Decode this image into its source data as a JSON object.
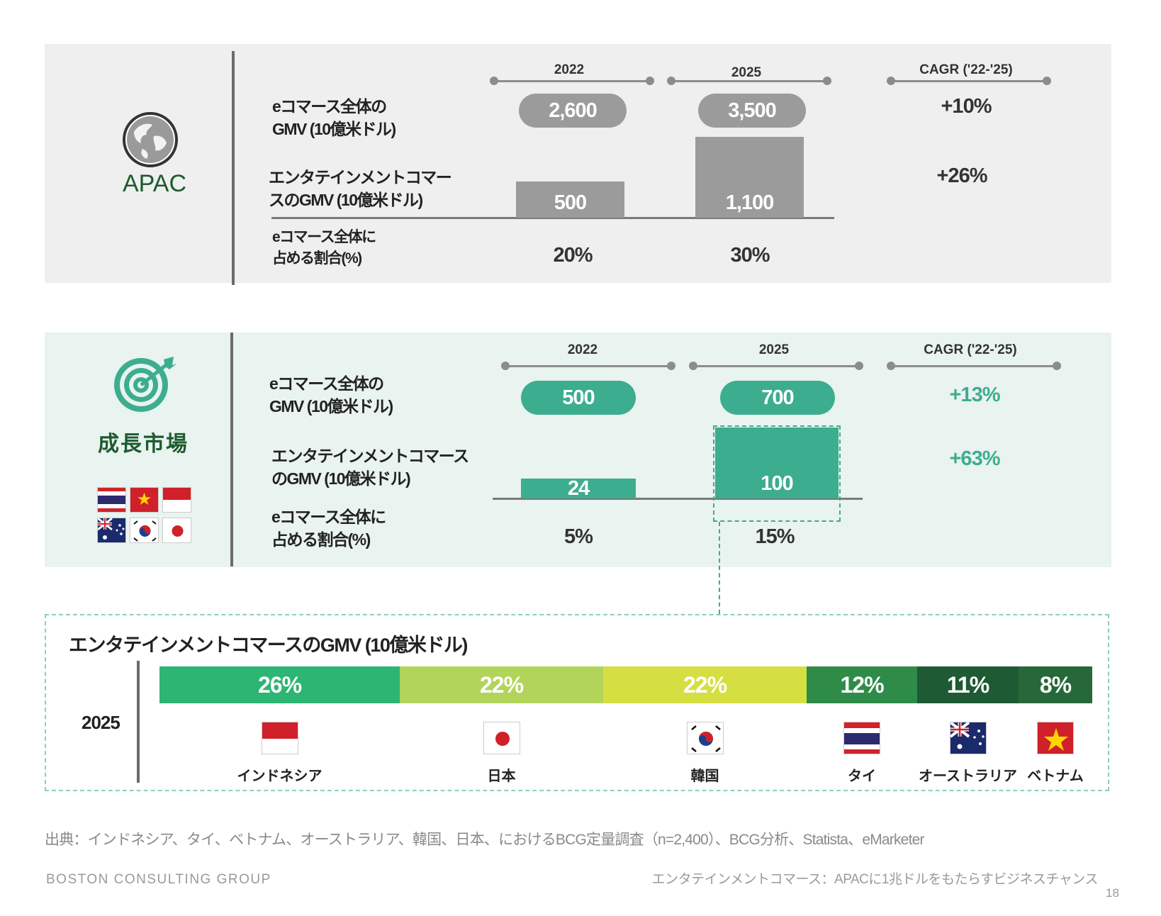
{
  "apac": {
    "region_label": "APAC",
    "year_a": "2022",
    "year_b": "2025",
    "cagr_header": "CAGR ('22-'25)",
    "row1_label_l1": "eコマース全体の",
    "row1_label_l2": "GMV (10億米ドル)",
    "row2_label_l1": "エンタテインメントコマー",
    "row2_label_l2": "スのGMV (10億米ドル)",
    "row3_label_l1": "eコマース全体に",
    "row3_label_l2": "占める割合(%)",
    "ecom_2022": "2,600",
    "ecom_2025": "3,500",
    "ecom_cagr": "+10%",
    "ent_2022": "500",
    "ent_2025": "1,100",
    "ent_cagr": "+26%",
    "share_2022": "20%",
    "share_2025": "30%"
  },
  "growth": {
    "region_label": "成長市場",
    "year_a": "2022",
    "year_b": "2025",
    "cagr_header": "CAGR ('22-'25)",
    "row1_label_l1": "eコマース全体の",
    "row1_label_l2": "GMV (10億米ドル)",
    "row2_label_l1": "エンタテインメントコマース",
    "row2_label_l2": "のGMV (10億米ドル)",
    "row3_label_l1": "eコマース全体に",
    "row3_label_l2": "占める割合(%)",
    "ecom_2022": "500",
    "ecom_2025": "700",
    "ecom_cagr": "+13%",
    "ent_2022": "24",
    "ent_2025": "100",
    "ent_cagr": "+63%",
    "share_2022": "5%",
    "share_2025": "15%"
  },
  "breakdown": {
    "title": "エンタテインメントコマースのGMV (10億米ドル)",
    "year": "2025",
    "segments": [
      {
        "country": "インドネシア",
        "share": 26,
        "label": "26%",
        "color": "#2db573",
        "flag": "indonesia"
      },
      {
        "country": "日本",
        "share": 22,
        "label": "22%",
        "color": "#b2d45a",
        "flag": "japan"
      },
      {
        "country": "韓国",
        "share": 22,
        "label": "22%",
        "color": "#d5df42",
        "flag": "korea"
      },
      {
        "country": "タイ",
        "share": 12,
        "label": "12%",
        "color": "#2e8c48",
        "flag": "thailand"
      },
      {
        "country": "オーストラリア",
        "share": 11,
        "label": "11%",
        "color": "#1e5a33",
        "flag": "australia"
      },
      {
        "country": "ベトナム",
        "share": 8,
        "label": "8%",
        "color": "#26683a",
        "flag": "vietnam"
      }
    ]
  },
  "colors": {
    "apac_accent": "#9b9b9b",
    "growth_accent": "#3dad8f",
    "title_green": "#1d5b2f",
    "growth_text": "#3dad8f"
  },
  "footer": {
    "source": "出典：インドネシア、タイ、ベトナム、オーストラリア、韓国、日本、におけるBCG定量調査（n=2,400）、BCG分析、Statista、eMarketer",
    "company": "BOSTON CONSULTING GROUP",
    "report_title": "エンタテインメントコマース：APACに1兆ドルをもたらすビジネスチャンス",
    "page_number": "18"
  }
}
